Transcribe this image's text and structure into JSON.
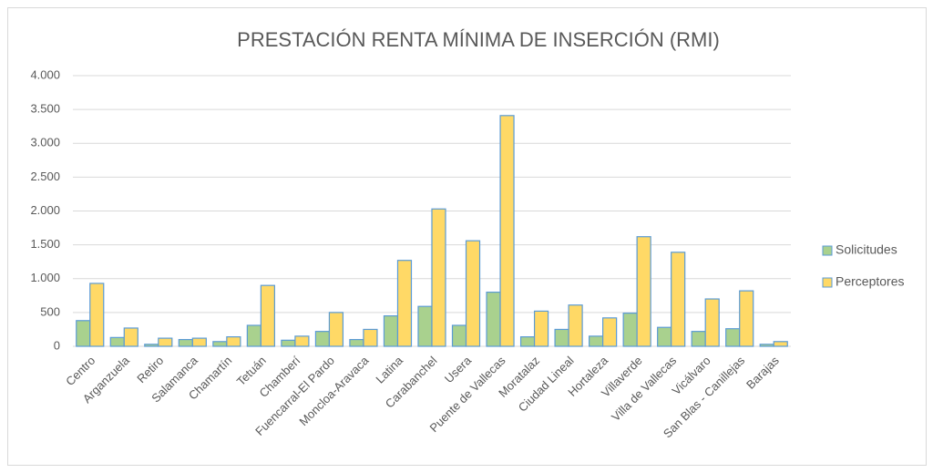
{
  "chart_data": {
    "type": "bar",
    "title": "PRESTACIÓN RENTA MÍNIMA DE INSERCIÓN (RMI)",
    "categories": [
      "Centro",
      "Arganzuela",
      "Retiro",
      "Salamanca",
      "Chamartín",
      "Tetuán",
      "Chamberí",
      "Fuencarral-El Pardo",
      "Moncloa-Aravaca",
      "Latina",
      "Carabanchel",
      "Usera",
      "Puente de Vallecas",
      "Moratalaz",
      "Ciudad Lineal",
      "Hortaleza",
      "Villaverde",
      "Villa de Vallecas",
      "Vicálvaro",
      "San Blas - Canillejas",
      "Barajas"
    ],
    "series": [
      {
        "name": "Solicitudes",
        "color": "#a9d18e",
        "values": [
          380,
          130,
          30,
          100,
          70,
          310,
          90,
          220,
          100,
          450,
          590,
          310,
          800,
          140,
          250,
          150,
          490,
          280,
          220,
          260,
          30
        ]
      },
      {
        "name": "Perceptores",
        "color": "#ffd966",
        "values": [
          930,
          270,
          120,
          120,
          140,
          900,
          150,
          500,
          250,
          1270,
          2030,
          1560,
          3410,
          520,
          610,
          420,
          1620,
          1390,
          700,
          820,
          70
        ]
      }
    ],
    "ylim": [
      0,
      4000
    ],
    "yticks": [
      0,
      {
        "value": 500,
        "label": "500"
      },
      {
        "value": 1000,
        "label": "1.000"
      },
      {
        "value": 1500,
        "label": "1.500"
      },
      {
        "value": 2000,
        "label": "2.000"
      },
      {
        "value": 2500,
        "label": "2.500"
      },
      {
        "value": 3000,
        "label": "3.000"
      },
      {
        "value": 3500,
        "label": "3.500"
      },
      {
        "value": 4000,
        "label": "4.000"
      }
    ],
    "grid": true,
    "legend": "right"
  }
}
